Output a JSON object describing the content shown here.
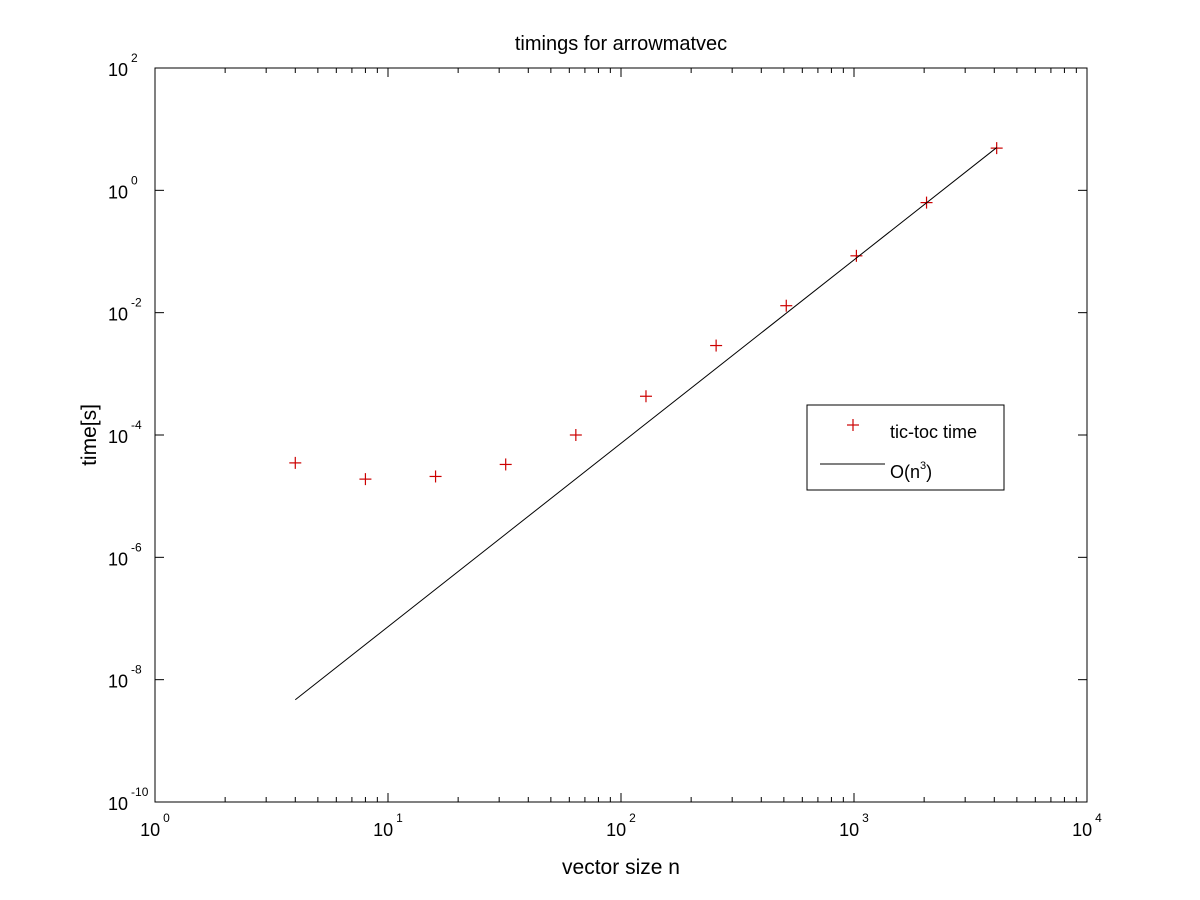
{
  "chart_data": {
    "type": "scatter",
    "title": "timings for arrowmatvec",
    "xlabel": "vector size n",
    "ylabel": "time[s]",
    "xscale": "log",
    "yscale": "log",
    "xlim": [
      1,
      10000
    ],
    "ylim": [
      1e-10,
      100
    ],
    "xticks": [
      {
        "value": 1,
        "base": "10",
        "exp": "0"
      },
      {
        "value": 10,
        "base": "10",
        "exp": "1"
      },
      {
        "value": 100,
        "base": "10",
        "exp": "2"
      },
      {
        "value": 1000,
        "base": "10",
        "exp": "3"
      },
      {
        "value": 10000,
        "base": "10",
        "exp": "4"
      }
    ],
    "yticks": [
      {
        "value": 1e-10,
        "base": "10",
        "exp": "-10"
      },
      {
        "value": 1e-08,
        "base": "10",
        "exp": "-8"
      },
      {
        "value": 1e-06,
        "base": "10",
        "exp": "-6"
      },
      {
        "value": 0.0001,
        "base": "10",
        "exp": "-4"
      },
      {
        "value": 0.01,
        "base": "10",
        "exp": "-2"
      },
      {
        "value": 1,
        "base": "10",
        "exp": "0"
      },
      {
        "value": 100,
        "base": "10",
        "exp": "2"
      }
    ],
    "grid": false,
    "legend_position": "right",
    "series": [
      {
        "name": "tic-toc time",
        "style": "marker-plus",
        "color": "#cc0000",
        "x": [
          4,
          8,
          16,
          32,
          64,
          128,
          256,
          512,
          1024,
          2048,
          4096
        ],
        "y": [
          3.5e-05,
          1.9e-05,
          2.1e-05,
          3.3e-05,
          0.0001,
          0.00043,
          0.0029,
          0.013,
          0.085,
          0.63,
          4.9
        ]
      },
      {
        "name": "O(n³)",
        "legend_base": "O(n",
        "legend_sup": "3",
        "legend_tail": ")",
        "style": "line",
        "color": "#000000",
        "x": [
          4,
          4096
        ],
        "y": [
          4.7e-09,
          5.0
        ]
      }
    ]
  }
}
